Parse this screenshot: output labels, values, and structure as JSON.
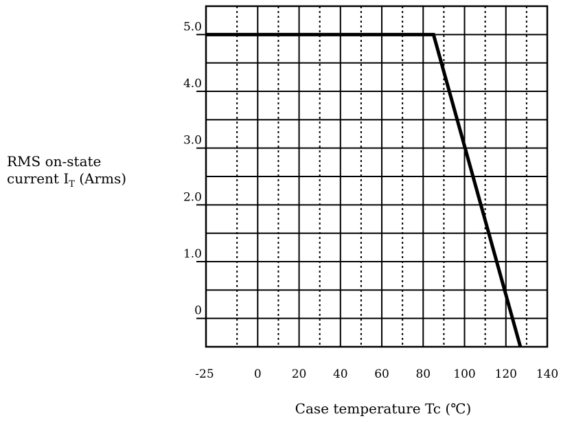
{
  "chart_data": {
    "type": "line",
    "title": "",
    "ylabel": "RMS on-state current I",
    "ylabel_sub": "T",
    "ylabel_unit": "(Arms)",
    "ylabel_line1": "RMS on-state",
    "ylabel_line2": "current I",
    "xlabel": "Case temperature  Tc (℃)",
    "xlim": [
      -25,
      140
    ],
    "ylim": [
      -0.5,
      5.5
    ],
    "x_ticks": [
      {
        "value": -25,
        "label": "-25"
      },
      {
        "value": 0,
        "label": "0"
      },
      {
        "value": 20,
        "label": "20"
      },
      {
        "value": 40,
        "label": "40"
      },
      {
        "value": 60,
        "label": "60"
      },
      {
        "value": 80,
        "label": "80"
      },
      {
        "value": 100,
        "label": "100"
      },
      {
        "value": 120,
        "label": "120"
      },
      {
        "value": 140,
        "label": "140"
      }
    ],
    "y_ticks": [
      {
        "value": 0,
        "label": "0"
      },
      {
        "value": 1,
        "label": "1.0"
      },
      {
        "value": 2,
        "label": "2.0"
      },
      {
        "value": 3,
        "label": "3.0"
      },
      {
        "value": 4,
        "label": "4.0"
      },
      {
        "value": 5,
        "label": "5.0"
      }
    ],
    "grid": true,
    "series": [
      {
        "x": [
          -25,
          85,
          127
        ],
        "y": [
          5.0,
          5.0,
          -0.5
        ],
        "color": "#000000"
      }
    ]
  }
}
